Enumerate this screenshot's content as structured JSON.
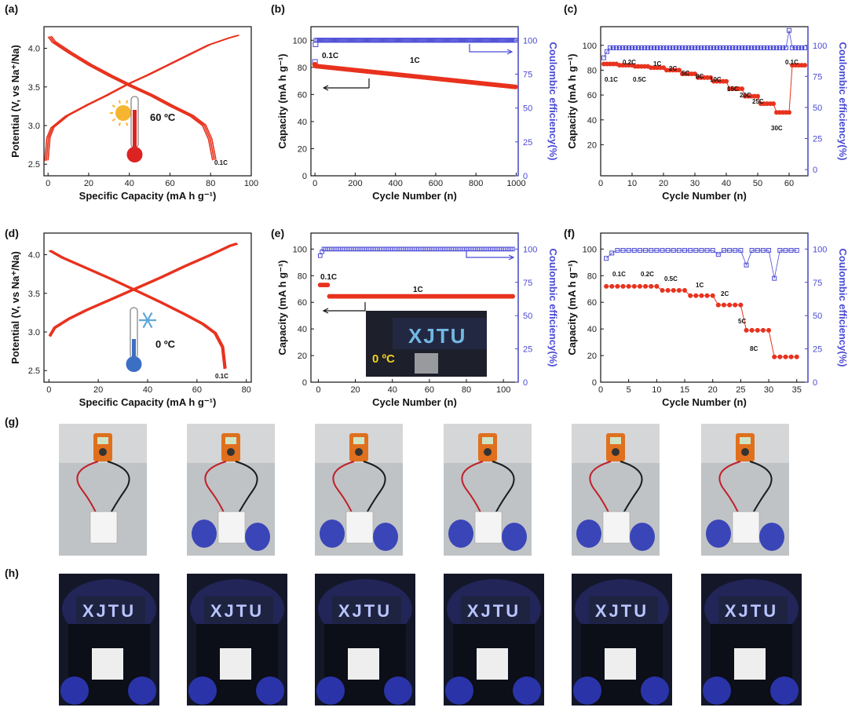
{
  "panels": {
    "a": "(a)",
    "b": "(b)",
    "c": "(c)",
    "d": "(d)",
    "e": "(e)",
    "f": "(f)",
    "g": "(g)",
    "h": "(h)"
  },
  "colors": {
    "red": "#e8321e",
    "blue": "#4a4ad6",
    "black": "#111111"
  },
  "icons": {
    "sun": "sun-icon",
    "thermometer_hot": "thermometer-hot-icon",
    "snowflake": "snowflake-icon",
    "thermometer_cold": "thermometer-cold-icon"
  },
  "chart_data": [
    {
      "id": "a",
      "type": "line",
      "xlabel": "Specific Capacity (mA h g⁻¹)",
      "ylabel": "Potential (V, vs Na⁺/Na)",
      "xlim": [
        -2,
        100
      ],
      "ylim": [
        2.35,
        4.28
      ],
      "xticks": [
        "0",
        "20",
        "40",
        "60",
        "80",
        "100"
      ],
      "yticks": [
        "2.5",
        "3.0",
        "3.5",
        "4.0"
      ],
      "annotations": {
        "temp": "60 ºC",
        "rate": "0.1C"
      },
      "charge": [
        [
          0,
          2.55
        ],
        [
          1,
          2.85
        ],
        [
          3,
          2.98
        ],
        [
          10,
          3.13
        ],
        [
          20,
          3.27
        ],
        [
          30,
          3.4
        ],
        [
          40,
          3.54
        ],
        [
          50,
          3.66
        ],
        [
          60,
          3.79
        ],
        [
          70,
          3.92
        ],
        [
          80,
          4.05
        ],
        [
          90,
          4.14
        ],
        [
          94,
          4.17
        ]
      ],
      "discharge": [
        [
          0,
          4.15
        ],
        [
          2,
          4.08
        ],
        [
          10,
          3.94
        ],
        [
          20,
          3.78
        ],
        [
          30,
          3.64
        ],
        [
          40,
          3.51
        ],
        [
          50,
          3.39
        ],
        [
          60,
          3.25
        ],
        [
          70,
          3.12
        ],
        [
          76,
          3.0
        ],
        [
          79,
          2.82
        ],
        [
          81,
          2.55
        ]
      ]
    },
    {
      "id": "b",
      "type": "scatter",
      "xlabel": "Cycle Number (n)",
      "ylabel": "Capacity (mA h g⁻¹)",
      "y2label": "Coulombic efficiency(%)",
      "xlim": [
        -20,
        1010
      ],
      "ylim": [
        0,
        110
      ],
      "y2lim": [
        0,
        110
      ],
      "xticks": [
        "0",
        "200",
        "400",
        "600",
        "800",
        "1000"
      ],
      "yticks": [
        "0",
        "20",
        "40",
        "60",
        "80",
        "100"
      ],
      "y2ticks": [
        "0",
        "25",
        "50",
        "75",
        "100"
      ],
      "annotations": {
        "r1": "0.1C",
        "r2": "1C"
      },
      "capacity": {
        "start": 82,
        "end": 65.5
      },
      "ce": {
        "first": 84,
        "second": 97,
        "steady": 100
      }
    },
    {
      "id": "c",
      "type": "scatter",
      "xlabel": "Cycle Number (n)",
      "ylabel": "Capacity (mA h g⁻¹)",
      "y2label": "Coulombic efficiency(%)",
      "xlim": [
        0,
        66
      ],
      "ylim": [
        -5,
        115
      ],
      "y2lim": [
        -5,
        115
      ],
      "xticks": [
        "0",
        "10",
        "20",
        "30",
        "40",
        "50",
        "60"
      ],
      "yticks": [
        "20",
        "40",
        "60",
        "80",
        "100"
      ],
      "y2ticks": [
        "0",
        "25",
        "50",
        "75",
        "100"
      ],
      "rates": [
        "0.1C",
        "0.2C",
        "0.5C",
        "1C",
        "2C",
        "5C",
        "8C",
        "10C",
        "15C",
        "20C",
        "25C",
        "30C",
        "0.1C"
      ],
      "capacity": [
        85,
        84,
        83,
        82,
        80,
        77,
        74,
        71,
        65,
        59,
        53,
        46,
        84
      ],
      "ce_spikes": {
        "60": 112,
        "0": 90
      }
    },
    {
      "id": "d",
      "type": "line",
      "xlabel": "Specific Capacity (mA h g⁻¹)",
      "ylabel": "Potential (V, vs Na⁺/Na)",
      "xlim": [
        -2,
        82
      ],
      "ylim": [
        2.35,
        4.28
      ],
      "xticks": [
        "0",
        "20",
        "40",
        "60",
        "80"
      ],
      "yticks": [
        "2.5",
        "3.0",
        "3.5",
        "4.0"
      ],
      "annotations": {
        "temp": "0 ºC",
        "rate": "0.1C"
      },
      "charge": [
        [
          0,
          2.95
        ],
        [
          2,
          3.06
        ],
        [
          8,
          3.18
        ],
        [
          15,
          3.29
        ],
        [
          25,
          3.43
        ],
        [
          35,
          3.57
        ],
        [
          45,
          3.71
        ],
        [
          55,
          3.86
        ],
        [
          65,
          4.0
        ],
        [
          73,
          4.12
        ],
        [
          76,
          4.15
        ]
      ],
      "discharge": [
        [
          0,
          4.05
        ],
        [
          5,
          3.96
        ],
        [
          15,
          3.82
        ],
        [
          25,
          3.68
        ],
        [
          35,
          3.53
        ],
        [
          45,
          3.38
        ],
        [
          55,
          3.22
        ],
        [
          62,
          3.1
        ],
        [
          67,
          2.98
        ],
        [
          70,
          2.8
        ],
        [
          71,
          2.52
        ]
      ]
    },
    {
      "id": "e",
      "type": "scatter",
      "xlabel": "Cycle Number (n)",
      "ylabel": "Capacity (mA h g⁻¹)",
      "y2label": "Coulombic efficiency(%)",
      "xlim": [
        -4,
        108
      ],
      "ylim": [
        0,
        112
      ],
      "y2lim": [
        0,
        112
      ],
      "xticks": [
        "0",
        "20",
        "40",
        "60",
        "80",
        "100"
      ],
      "yticks": [
        "0",
        "20",
        "40",
        "60",
        "80",
        "100"
      ],
      "y2ticks": [
        "0",
        "25",
        "50",
        "75",
        "100"
      ],
      "annotations": {
        "r1": "0.1C",
        "r2": "1C",
        "inset_temp": "0 ºC",
        "inset_sign": "XJTU"
      },
      "capacity": {
        "first": 73,
        "steady": 64.5
      },
      "ce": {
        "first": 95,
        "second": 98,
        "steady": 100
      }
    },
    {
      "id": "f",
      "type": "scatter",
      "xlabel": "Cycle Number (n)",
      "ylabel": "Capacity (mA h g⁻¹)",
      "y2label": "Coulombic efficiency(%)",
      "xlim": [
        0,
        37
      ],
      "ylim": [
        0,
        112
      ],
      "y2lim": [
        0,
        112
      ],
      "xticks": [
        "0",
        "5",
        "10",
        "15",
        "20",
        "25",
        "30",
        "35"
      ],
      "yticks": [
        "0",
        "20",
        "40",
        "60",
        "80",
        "100"
      ],
      "y2ticks": [
        "0",
        "25",
        "50",
        "75",
        "100"
      ],
      "rates": [
        "0.1C",
        "0.2C",
        "0.5C",
        "1C",
        "2C",
        "5C",
        "8C"
      ],
      "capacity": [
        72,
        72,
        69,
        65,
        58,
        39,
        19
      ],
      "ce_dips": {
        "26": 88,
        "31": 78
      }
    }
  ],
  "photos": {
    "g": {
      "count": 6
    },
    "h": {
      "count": 6,
      "sign": "XJTU"
    }
  }
}
